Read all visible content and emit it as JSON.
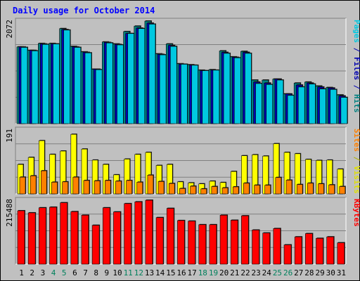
{
  "chart_data": {
    "type": "bar",
    "title": "Daily usage for October 2014",
    "categories": [
      "1",
      "2",
      "3",
      "4",
      "5",
      "6",
      "7",
      "8",
      "9",
      "10",
      "11",
      "12",
      "13",
      "14",
      "15",
      "16",
      "17",
      "18",
      "19",
      "20",
      "21",
      "22",
      "23",
      "24",
      "25",
      "26",
      "27",
      "28",
      "29",
      "30",
      "31"
    ],
    "weekend_days": [
      "4",
      "5",
      "11",
      "12",
      "18",
      "19",
      "25",
      "26"
    ],
    "panels": [
      {
        "id": "pages-files-hits",
        "ylabel_max": "2072",
        "ymax": 2072,
        "right_label": [
          {
            "text": "Pages",
            "color": "#00c8e0"
          },
          {
            "text": " / ",
            "color": "#0000b0"
          },
          {
            "text": "Files",
            "color": "#0000b0"
          },
          {
            "text": " / ",
            "color": "#0000b0"
          },
          {
            "text": "Hits",
            "color": "#008080"
          }
        ],
        "series": [
          {
            "name": "Hits",
            "color": "#008080",
            "values": [
              1550,
              1480,
              1620,
              1620,
              1920,
              1560,
              1450,
              1100,
              1650,
              1610,
              1860,
              1970,
              2072,
              1410,
              1610,
              1210,
              1190,
              1080,
              1090,
              1470,
              1350,
              1460,
              880,
              880,
              900,
              600,
              820,
              840,
              760,
              730,
              580
            ]
          },
          {
            "name": "Files",
            "color": "#0000b0",
            "values": [
              1550,
              1480,
              1610,
              1610,
              1900,
              1550,
              1440,
              1100,
              1640,
              1600,
              1820,
              1930,
              2030,
              1400,
              1580,
              1200,
              1180,
              1070,
              1080,
              1440,
              1340,
              1440,
              840,
              820,
              900,
              600,
              780,
              820,
              740,
              720,
              560
            ]
          },
          {
            "name": "Pages",
            "color": "#00c8e0",
            "values": [
              1540,
              1470,
              1600,
              1610,
              1890,
              1540,
              1430,
              1090,
              1630,
              1590,
              1820,
              1920,
              2010,
              1390,
              1560,
              1200,
              1180,
              1070,
              1080,
              1420,
              1330,
              1420,
              810,
              790,
              880,
              570,
              740,
              800,
              700,
              690,
              530
            ]
          }
        ]
      },
      {
        "id": "sites-visits",
        "ylabel_max": "191",
        "ymax": 191,
        "right_label": [
          {
            "text": "Sites",
            "color": "#ff8000"
          },
          {
            "text": " / ",
            "color": "#b0b000"
          },
          {
            "text": "Visits",
            "color": "#e0e000"
          }
        ],
        "series": [
          {
            "name": "Visits",
            "color": "#ffff00",
            "values": [
              88,
              109,
              159,
              118,
              128,
              178,
              134,
              101,
              88,
              57,
              104,
              118,
              124,
              85,
              88,
              36,
              33,
              30,
              38,
              34,
              67,
              114,
              117,
              113,
              150,
              124,
              120,
              103,
              100,
              101,
              74
            ]
          },
          {
            "name": "Sites",
            "color": "#ff8000",
            "values": [
              50,
              54,
              69,
              35,
              36,
              50,
              40,
              39,
              40,
              38,
              40,
              35,
              56,
              37,
              31,
              16,
              23,
              15,
              22,
              18,
              21,
              32,
              26,
              26,
              49,
              41,
              28,
              32,
              30,
              27,
              22
            ]
          }
        ]
      },
      {
        "id": "kbytes",
        "ylabel_max": "215488",
        "ymax": 215488,
        "right_label": [
          {
            "text": "KBytes",
            "color": "#ff0000"
          }
        ],
        "series": [
          {
            "name": "KBytes",
            "color": "#ff0000",
            "values": [
              180000,
              173000,
              190000,
              192000,
              207000,
              177000,
              165000,
              131000,
              190000,
              176000,
              204000,
              210000,
              215488,
              157000,
              188000,
              147000,
              145000,
              133000,
              133000,
              165000,
              148000,
              163000,
              115000,
              105000,
              120000,
              65000,
              92000,
              103000,
              87000,
              92000,
              72000
            ]
          }
        ]
      }
    ]
  },
  "colors": {
    "background": "#c0c0c0",
    "plot_bg": "#c0c0c0",
    "title": "#0000ff",
    "tick_weekday": "#000000",
    "tick_weekend": "#00805c"
  }
}
